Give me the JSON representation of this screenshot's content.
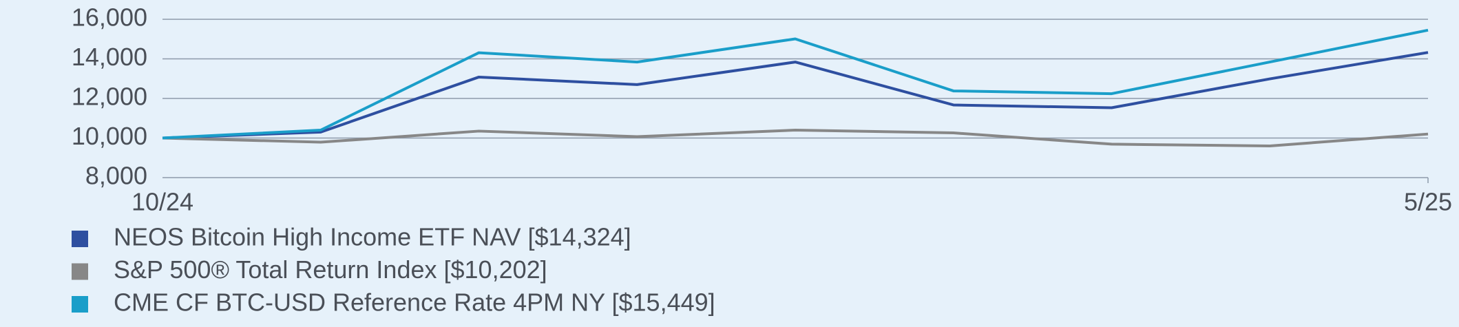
{
  "chart_data": {
    "type": "line",
    "categories": [
      "10/24",
      null,
      null,
      null,
      null,
      null,
      null,
      null,
      "5/25"
    ],
    "series": [
      {
        "name": "NEOS Bitcoin High Income ETF NAV [$14,324]",
        "color": "#2e4fa0",
        "values": [
          10000,
          10300,
          13080,
          12700,
          13840,
          11670,
          11530,
          12990,
          14324
        ]
      },
      {
        "name": "S&P 500® Total Return Index [$10,202]",
        "color": "#878787",
        "values": [
          10000,
          9790,
          10350,
          10070,
          10400,
          10260,
          9690,
          9600,
          10202
        ]
      },
      {
        "name": "CME CF BTC-USD Reference Rate 4PM NY [$15,449]",
        "color": "#1a9ec9",
        "values": [
          10000,
          10400,
          14310,
          13840,
          15010,
          12380,
          12240,
          13840,
          15449
        ]
      }
    ],
    "ylim": [
      8000,
      16000
    ],
    "yticks": [
      {
        "value": 8000,
        "label": "8,000"
      },
      {
        "value": 10000,
        "label": "10,000"
      },
      {
        "value": 12000,
        "label": "12,000"
      },
      {
        "value": 14000,
        "label": "14,000"
      },
      {
        "value": 16000,
        "label": "16,000"
      }
    ],
    "grid": true
  }
}
